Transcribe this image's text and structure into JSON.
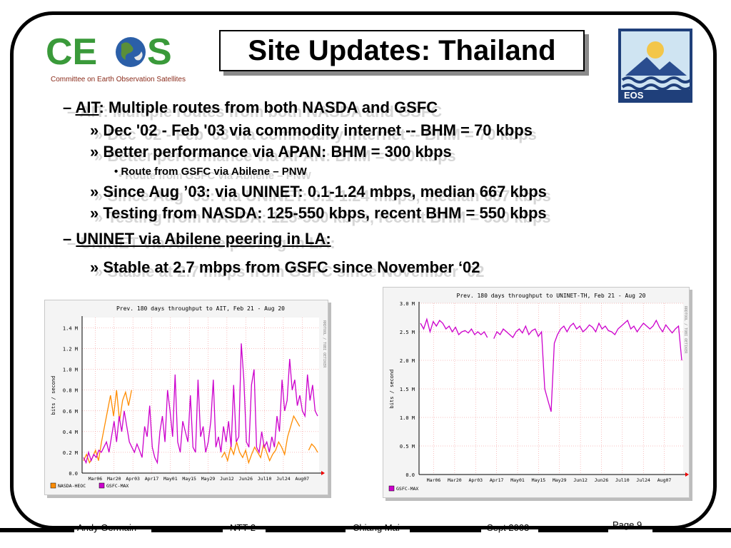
{
  "slide": {
    "title": "Site Updates: Thailand",
    "ceos_logo": {
      "word": "CEOS",
      "caption": "Committee on Earth Observation Satellites"
    },
    "eos_logo": {
      "label": "EOS"
    },
    "bullets": [
      {
        "level": 1,
        "marker": "–",
        "underlined": "AIT",
        "text": ": Multiple routes from both NASDA and GSFC"
      },
      {
        "level": 2,
        "marker": "»",
        "text": "Dec '02 - Feb '03 via commodity internet -- BHM = 70 kbps"
      },
      {
        "level": 2,
        "marker": "»",
        "text": "Better performance via APAN: BHM = 300 kbps"
      },
      {
        "level": 3,
        "marker": "•",
        "text": "Route from GSFC via Abilene – PNW"
      },
      {
        "level": 2,
        "marker": "»",
        "text": " Since Aug ’03:  via UNINET: 0.1-1.24 mbps, median 667 kbps"
      },
      {
        "level": 2,
        "marker": "»",
        "text": " Testing from NASDA: 125-550 kbps, recent BHM = 550 kbps"
      },
      {
        "level": 1,
        "marker": "–",
        "underlined": "UNINET via Abilene peering in LA:",
        "text": ""
      },
      {
        "level": 2,
        "marker": "»",
        "text": "Stable at 2.7 mbps from GSFC since November ‘02"
      }
    ],
    "footer": {
      "author": "Andy Germain",
      "event": "NTT-2",
      "location": "Chiang Mai",
      "date": "Sept 2003",
      "page": "Page 9"
    }
  },
  "chart_data": [
    {
      "type": "line",
      "title": "Prev. 180 days throughput to AIT, Feb 21 - Aug 20",
      "ylabel": "bits / second",
      "side_label": "RRDTOOL / TOBI OETIKER",
      "yticks": [
        "0.0",
        "0.2 M",
        "0.4 M",
        "0.6 M",
        "0.8 M",
        "1.0 M",
        "1.2 M",
        "1.4 M"
      ],
      "ylim": [
        0,
        1.5
      ],
      "xticks": [
        "Mar06",
        "Mar20",
        "Apr03",
        "Apr17",
        "May01",
        "May15",
        "May29",
        "Jun12",
        "Jun26",
        "Jul10",
        "Jul24",
        "Aug07"
      ],
      "series": [
        {
          "name": "NASDA-HEOC",
          "color": "#ff8c00",
          "values": [
            0.12,
            0.18,
            0.1,
            0.15,
            0.22,
            0.12,
            0.3,
            0.45,
            0.6,
            0.75,
            0.55,
            0.8,
            0.5,
            0.7,
            0.78,
            0.65,
            0.8,
            null,
            null,
            null,
            null,
            null,
            null,
            null,
            null,
            null,
            null,
            null,
            null,
            null,
            null,
            null,
            null,
            null,
            null,
            null,
            null,
            null,
            null,
            null,
            null,
            null,
            null,
            null,
            null,
            null,
            0.15,
            0.2,
            0.12,
            0.25,
            0.18,
            0.3,
            0.2,
            0.15,
            0.22,
            0.1,
            0.18,
            0.25,
            0.2,
            0.15,
            0.28,
            0.2,
            0.12,
            0.18,
            0.22,
            0.3,
            0.25,
            0.18,
            0.35,
            0.45,
            0.55,
            0.5,
            0.45,
            null,
            null,
            0.22,
            0.28,
            0.25,
            0.2
          ]
        },
        {
          "name": "GSFC-MAX",
          "color": "#cc00cc",
          "values": [
            0.15,
            0.1,
            0.2,
            0.12,
            0.18,
            0.15,
            0.22,
            0.2,
            0.25,
            0.3,
            0.2,
            0.35,
            0.5,
            0.3,
            0.55,
            0.4,
            0.6,
            0.45,
            0.3,
            0.25,
            0.2,
            0.28,
            0.22,
            0.15,
            0.45,
            0.35,
            0.65,
            0.25,
            0.15,
            0.1,
            0.4,
            0.55,
            0.3,
            0.8,
            0.6,
            0.35,
            0.95,
            0.3,
            0.2,
            0.5,
            0.4,
            0.3,
            0.75,
            0.25,
            0.2,
            0.9,
            0.35,
            0.45,
            0.2,
            0.3,
            0.5,
            0.9,
            0.25,
            0.35,
            0.2,
            0.45,
            0.3,
            0.5,
            0.25,
            0.85,
            0.3,
            0.35,
            1.25,
            0.9,
            0.3,
            0.25,
            0.85,
            1.0,
            0.25,
            0.2,
            0.4,
            0.25,
            0.3,
            0.2,
            0.35,
            0.25,
            0.55,
            0.4,
            0.9,
            0.6,
            0.7,
            1.1,
            0.8,
            0.9,
            0.65,
            0.75,
            0.6,
            0.55,
            0.95,
            0.7,
            0.85,
            0.6,
            0.55
          ]
        }
      ]
    },
    {
      "type": "line",
      "title": "Prev. 180 days throughput to UNINET-TH, Feb 21 - Aug 20",
      "ylabel": "bits / second",
      "side_label": "RRDTOOL / TOBI OETIKER",
      "yticks": [
        "0.0",
        "0.5 M",
        "1.0 M",
        "1.5 M",
        "2.0 M",
        "2.5 M",
        "3.0 M"
      ],
      "ylim": [
        0,
        3.0
      ],
      "xticks": [
        "Mar06",
        "Mar20",
        "Apr03",
        "Apr17",
        "May01",
        "May15",
        "May29",
        "Jun12",
        "Jun26",
        "Jul10",
        "Jul24",
        "Aug07"
      ],
      "series": [
        {
          "name": "GSFC-MAX",
          "color": "#cc00cc",
          "values": [
            2.65,
            2.55,
            2.72,
            2.5,
            2.68,
            2.6,
            2.7,
            2.65,
            2.55,
            2.6,
            2.5,
            2.58,
            2.45,
            2.5,
            2.52,
            2.48,
            2.55,
            2.45,
            2.5,
            2.45,
            2.5,
            2.4,
            null,
            2.38,
            2.5,
            2.45,
            2.55,
            2.5,
            2.45,
            2.4,
            2.5,
            2.55,
            2.48,
            2.6,
            2.45,
            2.52,
            2.55,
            2.42,
            2.5,
            1.5,
            1.3,
            1.1,
            2.3,
            2.45,
            2.55,
            2.6,
            2.5,
            2.6,
            2.65,
            2.55,
            2.6,
            2.5,
            2.55,
            2.62,
            2.58,
            2.5,
            2.65,
            2.55,
            2.6,
            2.52,
            2.5,
            2.45,
            2.55,
            2.6,
            2.65,
            2.7,
            2.55,
            2.6,
            2.5,
            2.58,
            2.65,
            2.6,
            2.55,
            2.6,
            2.7,
            2.58,
            2.5,
            2.62,
            2.55,
            2.48,
            2.55,
            2.6,
            2.0
          ]
        }
      ]
    }
  ]
}
